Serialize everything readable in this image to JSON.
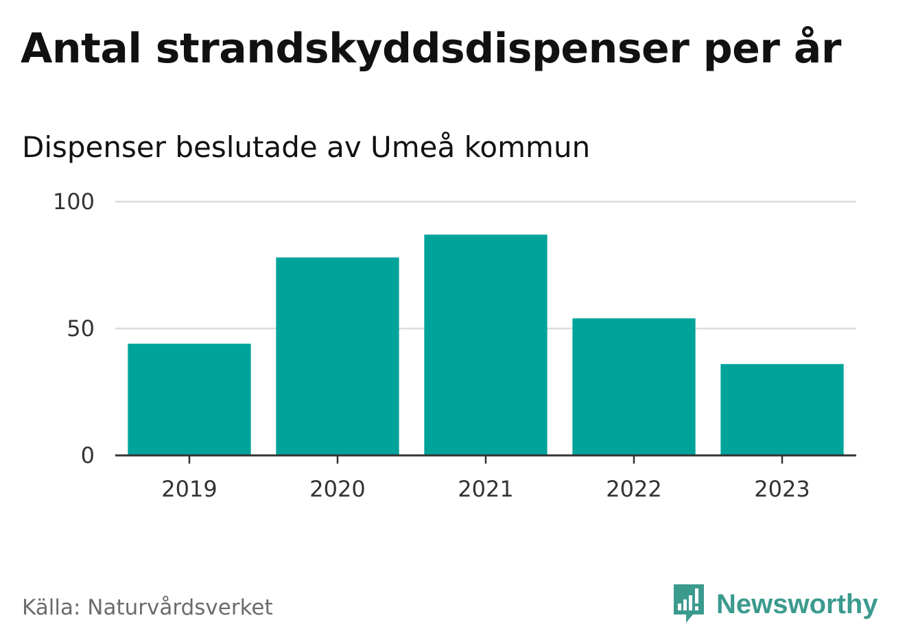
{
  "header": {
    "title": "Antal strandskyddsdispenser per år",
    "subtitle": "Dispenser beslutade av Umeå kommun"
  },
  "footer": {
    "source": "Källa: Naturvårdsverket",
    "brand_name": "Newsworthy",
    "brand_icon": "bar-chart-speech-bubble-icon"
  },
  "colors": {
    "bar": "#00a39a",
    "grid": "#dddddd",
    "axis": "#333333",
    "brand": "#3b9a8e"
  },
  "chart_data": {
    "type": "bar",
    "title": "Antal strandskyddsdispenser per år",
    "subtitle": "Dispenser beslutade av Umeå kommun",
    "categories": [
      "2019",
      "2020",
      "2021",
      "2022",
      "2023"
    ],
    "values": [
      44,
      78,
      87,
      54,
      36
    ],
    "xlabel": "",
    "ylabel": "",
    "ylim": [
      0,
      100
    ],
    "yticks": [
      0,
      50,
      100
    ],
    "grid": true,
    "legend": "none"
  }
}
